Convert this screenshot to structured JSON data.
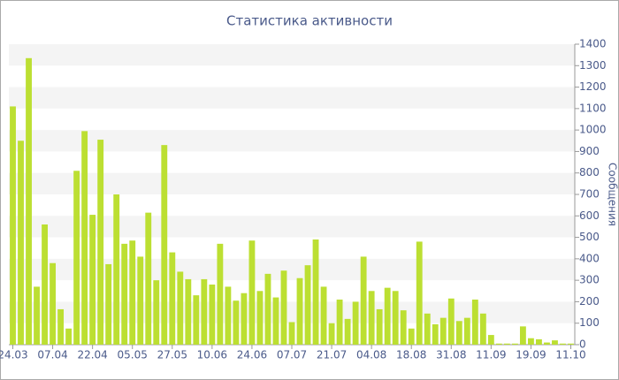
{
  "chart_data": {
    "type": "bar",
    "title": "Статистика активности",
    "y_label": "Сообщения",
    "categories": [
      "24.03",
      null,
      null,
      null,
      null,
      "07.04",
      null,
      null,
      null,
      null,
      "22.04",
      null,
      null,
      null,
      null,
      "05.05",
      null,
      null,
      null,
      null,
      "27.05",
      null,
      null,
      null,
      null,
      "10.06",
      null,
      null,
      null,
      null,
      "24.06",
      null,
      null,
      null,
      null,
      "07.07",
      null,
      null,
      null,
      null,
      "21.07",
      null,
      null,
      null,
      null,
      "04.08",
      null,
      null,
      null,
      null,
      "18.08",
      null,
      null,
      null,
      null,
      "31.08",
      null,
      null,
      null,
      null,
      "11.09",
      null,
      null,
      null,
      null,
      "19.09",
      null,
      null,
      null,
      null,
      "11.10"
    ],
    "values": [
      1110,
      950,
      1335,
      270,
      560,
      380,
      165,
      75,
      810,
      995,
      605,
      955,
      375,
      700,
      470,
      485,
      410,
      615,
      300,
      930,
      430,
      340,
      305,
      230,
      305,
      280,
      470,
      270,
      205,
      240,
      485,
      250,
      330,
      220,
      345,
      105,
      310,
      370,
      490,
      270,
      100,
      210,
      120,
      200,
      410,
      250,
      165,
      265,
      250,
      160,
      75,
      480,
      145,
      95,
      125,
      215,
      110,
      125,
      210,
      145,
      45,
      5,
      5,
      5,
      85,
      30,
      25,
      10,
      20,
      5,
      5
    ],
    "color": "#bcdf32",
    "ylim": [
      0,
      1400
    ],
    "yticks": [
      0,
      100,
      200,
      300,
      400,
      500,
      600,
      700,
      800,
      900,
      1000,
      1100,
      1200,
      1300,
      1400
    ],
    "grid": true
  }
}
